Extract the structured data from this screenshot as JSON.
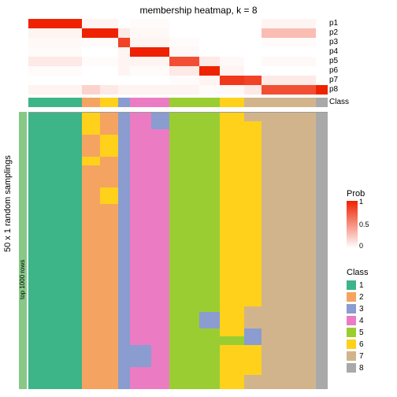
{
  "title": "membership heatmap, k = 8",
  "side_label": "50 x 1 random samplings",
  "side_label2": "top 1000 rows",
  "row_labels": [
    "p1",
    "p2",
    "p3",
    "p4",
    "p5",
    "p6",
    "p7",
    "p8",
    "Class"
  ],
  "prob_legend": {
    "title": "Prob",
    "ticks": [
      "1",
      "0.5",
      "0"
    ]
  },
  "class_legend": {
    "title": "Class"
  },
  "classes": [
    {
      "id": "1",
      "color": "#3eb489"
    },
    {
      "id": "2",
      "color": "#f4a460"
    },
    {
      "id": "3",
      "color": "#8a9cd0"
    },
    {
      "id": "4",
      "color": "#eb7cc3"
    },
    {
      "id": "5",
      "color": "#9acd32"
    },
    {
      "id": "6",
      "color": "#ffd11a"
    },
    {
      "id": "7",
      "color": "#d2b48c"
    },
    {
      "id": "8",
      "color": "#a9a9a9"
    }
  ],
  "prob_color_max": "#ee2200",
  "prob_color_min": "#ffffff",
  "column_widths": [
    0.18,
    0.06,
    0.06,
    0.04,
    0.07,
    0.06,
    0.1,
    0.07,
    0.08,
    0.06,
    0.18,
    0.04
  ],
  "prob_rows": [
    [
      [
        0,
        1.0
      ],
      [
        1,
        0.05
      ],
      [
        1,
        0.05
      ],
      [
        0,
        0
      ],
      [
        0,
        0.02
      ],
      [
        0,
        0.02
      ],
      [
        0,
        0
      ],
      [
        0,
        0
      ],
      [
        0,
        0
      ],
      [
        0,
        0
      ],
      [
        0,
        0.05
      ],
      [
        0,
        0
      ]
    ],
    [
      [
        0,
        0.05
      ],
      [
        1,
        1.0
      ],
      [
        1,
        1.0
      ],
      [
        0,
        0.1
      ],
      [
        0,
        0.03
      ],
      [
        0,
        0.03
      ],
      [
        0,
        0
      ],
      [
        0,
        0
      ],
      [
        0,
        0
      ],
      [
        0,
        0
      ],
      [
        0,
        0.3
      ],
      [
        0,
        0
      ]
    ],
    [
      [
        0,
        0.03
      ],
      [
        0,
        0.02
      ],
      [
        0,
        0.02
      ],
      [
        1,
        0.85
      ],
      [
        0,
        0.05
      ],
      [
        0,
        0.05
      ],
      [
        0,
        0.02
      ],
      [
        0,
        0
      ],
      [
        0,
        0
      ],
      [
        0,
        0
      ],
      [
        0,
        0.02
      ],
      [
        0,
        0
      ]
    ],
    [
      [
        0,
        0.02
      ],
      [
        0,
        0
      ],
      [
        0,
        0
      ],
      [
        0,
        0.05
      ],
      [
        1,
        1.0
      ],
      [
        1,
        1.0
      ],
      [
        0,
        0.03
      ],
      [
        0,
        0
      ],
      [
        0,
        0
      ],
      [
        0,
        0
      ],
      [
        0,
        0
      ],
      [
        0,
        0
      ]
    ],
    [
      [
        0,
        0.1
      ],
      [
        0,
        0.02
      ],
      [
        0,
        0.02
      ],
      [
        0,
        0.05
      ],
      [
        0,
        0.05
      ],
      [
        0,
        0.05
      ],
      [
        1,
        0.8
      ],
      [
        0,
        0.1
      ],
      [
        0,
        0.03
      ],
      [
        0,
        0
      ],
      [
        0,
        0.03
      ],
      [
        0,
        0
      ]
    ],
    [
      [
        0,
        0.02
      ],
      [
        0,
        0
      ],
      [
        0,
        0
      ],
      [
        0,
        0.05
      ],
      [
        0,
        0.02
      ],
      [
        0,
        0.02
      ],
      [
        0,
        0.1
      ],
      [
        1,
        1.0
      ],
      [
        0,
        0.05
      ],
      [
        0,
        0
      ],
      [
        0,
        0
      ],
      [
        0,
        0
      ]
    ],
    [
      [
        0,
        0
      ],
      [
        0,
        0
      ],
      [
        0,
        0
      ],
      [
        0,
        0
      ],
      [
        0,
        0
      ],
      [
        0,
        0
      ],
      [
        0,
        0.02
      ],
      [
        0,
        0.05
      ],
      [
        1,
        0.9
      ],
      [
        1,
        0.85
      ],
      [
        0,
        0.1
      ],
      [
        0,
        0
      ]
    ],
    [
      [
        0,
        0.05
      ],
      [
        0,
        0.2
      ],
      [
        0,
        0.1
      ],
      [
        0,
        0.05
      ],
      [
        0,
        0.05
      ],
      [
        0,
        0.05
      ],
      [
        0,
        0.05
      ],
      [
        0,
        0.02
      ],
      [
        0,
        0.03
      ],
      [
        0,
        0.1
      ],
      [
        1,
        0.8
      ],
      [
        1,
        1.0
      ]
    ]
  ],
  "class_row": [
    0,
    1,
    5,
    2,
    3,
    3,
    4,
    4,
    5,
    6,
    6,
    7
  ],
  "main_columns": [
    [
      [
        0,
        1.0
      ]
    ],
    [
      [
        5,
        0.08
      ],
      [
        1,
        0.08
      ],
      [
        5,
        0.03
      ],
      [
        1,
        0.81
      ]
    ],
    [
      [
        1,
        0.08
      ],
      [
        5,
        0.08
      ],
      [
        1,
        0.11
      ],
      [
        5,
        0.06
      ],
      [
        1,
        0.67
      ]
    ],
    [
      [
        2,
        1.0
      ]
    ],
    [
      [
        3,
        0.84
      ],
      [
        2,
        0.08
      ],
      [
        3,
        0.08
      ]
    ],
    [
      [
        2,
        0.06
      ],
      [
        3,
        0.94
      ]
    ],
    [
      [
        4,
        1.0
      ]
    ],
    [
      [
        4,
        0.72
      ],
      [
        2,
        0.06
      ],
      [
        4,
        0.22
      ]
    ],
    [
      [
        5,
        0.81
      ],
      [
        4,
        0.03
      ],
      [
        5,
        0.16
      ]
    ],
    [
      [
        6,
        0.03
      ],
      [
        5,
        0.67
      ],
      [
        6,
        0.08
      ],
      [
        2,
        0.06
      ],
      [
        5,
        0.11
      ],
      [
        6,
        0.05
      ]
    ],
    [
      [
        6,
        1.0
      ]
    ],
    [
      [
        7,
        1.0
      ]
    ]
  ]
}
